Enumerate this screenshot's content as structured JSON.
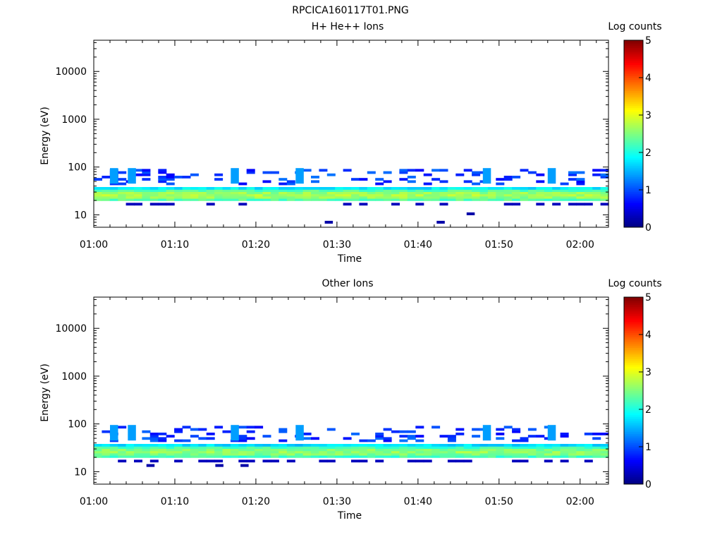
{
  "figure": {
    "title": "RPCICA160117T01.PNG"
  },
  "colorscale": {
    "name": "jet",
    "stops": [
      "#00007f",
      "#0000ff",
      "#007fff",
      "#00ffff",
      "#7fff7f",
      "#ffff00",
      "#ff7f00",
      "#ff0000",
      "#7f0000"
    ]
  },
  "chart_data": [
    {
      "type": "heatmap",
      "title": "H+ He++ Ions",
      "xlabel": "Time",
      "ylabel": "Energy (eV)",
      "x_ticks": [
        "01:00",
        "01:10",
        "01:20",
        "01:30",
        "01:40",
        "01:50",
        "02:00"
      ],
      "x_tick_minutes": [
        0,
        10,
        20,
        30,
        40,
        50,
        60
      ],
      "xlim_minutes": [
        0,
        63.5
      ],
      "y_scale": "log",
      "ylim": [
        5.5,
        45000
      ],
      "y_ticks": [
        "10",
        "100",
        "1000",
        "10000"
      ],
      "y_tick_values": [
        10,
        100,
        1000,
        10000
      ],
      "colorbar": {
        "label": "Log counts",
        "range": [
          0,
          5
        ],
        "ticks": [
          "0",
          "1",
          "2",
          "3",
          "4",
          "5"
        ]
      },
      "main_band": {
        "energy_min": 18,
        "energy_max": 38,
        "peak_log_counts": 2.7
      },
      "upper_band": {
        "energy_min": 40,
        "energy_max": 100,
        "typical_log_counts": 0.6
      },
      "low_edge": {
        "energy_min": 15,
        "energy_max": 18,
        "typical_log_counts": 0.3
      },
      "time_markers_minutes": [
        2.5,
        4.7,
        17.4,
        25.4,
        48.5,
        56.5
      ],
      "isolated_points": [
        {
          "t": 29.0,
          "e": 7.0,
          "v": 0.2
        },
        {
          "t": 42.8,
          "e": 7.0,
          "v": 0.2
        },
        {
          "t": 46.5,
          "e": 10.5,
          "v": 0.2
        }
      ]
    },
    {
      "type": "heatmap",
      "title": "Other Ions",
      "xlabel": "Time",
      "ylabel": "Energy (eV)",
      "x_ticks": [
        "01:00",
        "01:10",
        "01:20",
        "01:30",
        "01:40",
        "01:50",
        "02:00"
      ],
      "x_tick_minutes": [
        0,
        10,
        20,
        30,
        40,
        50,
        60
      ],
      "xlim_minutes": [
        0,
        63.5
      ],
      "y_scale": "log",
      "ylim": [
        5.5,
        45000
      ],
      "y_ticks": [
        "10",
        "100",
        "1000",
        "10000"
      ],
      "y_tick_values": [
        10,
        100,
        1000,
        10000
      ],
      "colorbar": {
        "label": "Log counts",
        "range": [
          0,
          5
        ],
        "ticks": [
          "0",
          "1",
          "2",
          "3",
          "4",
          "5"
        ]
      },
      "main_band": {
        "energy_min": 18,
        "energy_max": 38,
        "peak_log_counts": 2.6
      },
      "upper_band": {
        "energy_min": 40,
        "energy_max": 100,
        "typical_log_counts": 0.6
      },
      "low_edge": {
        "energy_min": 13,
        "energy_max": 18,
        "typical_log_counts": 0.3
      },
      "time_markers_minutes": [
        2.5,
        4.7,
        17.4,
        25.4,
        48.5,
        56.5
      ],
      "isolated_points": [
        {
          "t": 7.0,
          "e": 13.5,
          "v": 0.2
        },
        {
          "t": 15.5,
          "e": 13.5,
          "v": 0.2
        },
        {
          "t": 18.6,
          "e": 13.5,
          "v": 0.2
        }
      ]
    }
  ]
}
